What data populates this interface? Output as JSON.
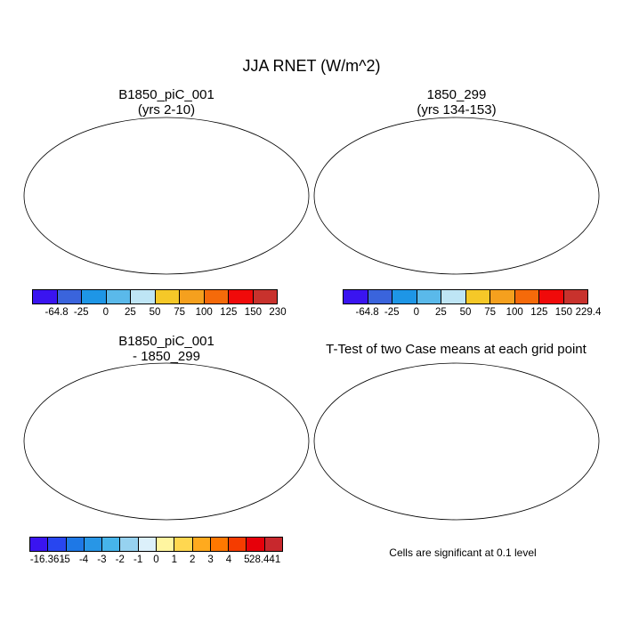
{
  "figure": {
    "title": "JJA RNET (W/m^2)",
    "panels": [
      {
        "title_line1": "B1850_piC_001",
        "title_line2": "(yrs 2-10)"
      },
      {
        "title_line1": "1850_299",
        "title_line2": "(yrs 134-153)"
      },
      {
        "title_line1": "B1850_piC_001",
        "title_line2": "- 1850_299"
      },
      {
        "title_line1": "T-Test of two Case means at each grid point",
        "title_line2": ""
      }
    ],
    "significance_note": "Cells are significant at 0.1 level"
  },
  "colorbars": {
    "panel1": {
      "labels": [
        "-64.8",
        "-25",
        "0",
        "25",
        "50",
        "75",
        "100",
        "125",
        "150",
        "230"
      ],
      "colors": [
        "#3a14f0",
        "#3a64dc",
        "#1e96e6",
        "#5ab9ea",
        "#bee5f5",
        "#f5c828",
        "#f5a01e",
        "#f56a0a",
        "#f00a0a",
        "#c8322d"
      ]
    },
    "panel2": {
      "labels": [
        "-64.8",
        "-25",
        "0",
        "25",
        "50",
        "75",
        "100",
        "125",
        "150",
        "229.4"
      ],
      "colors": [
        "#3a14f0",
        "#3a64dc",
        "#1e96e6",
        "#5ab9ea",
        "#bee5f5",
        "#f5c828",
        "#f5a01e",
        "#f56a0a",
        "#f00a0a",
        "#c8322d"
      ]
    },
    "panel3": {
      "labels": [
        "-16.361",
        "-5",
        "-4",
        "-3",
        "-2",
        "-1",
        "0",
        "1",
        "2",
        "3",
        "4",
        "5",
        "28.441"
      ],
      "colors": [
        "#3a14f0",
        "#2846f0",
        "#1e78e6",
        "#2896e6",
        "#46b4ea",
        "#96d2f0",
        "#dcf0fa",
        "#fff5a0",
        "#ffd750",
        "#ffaa1e",
        "#ff7800",
        "#f53c00",
        "#e6000a",
        "#c8282d"
      ]
    }
  }
}
